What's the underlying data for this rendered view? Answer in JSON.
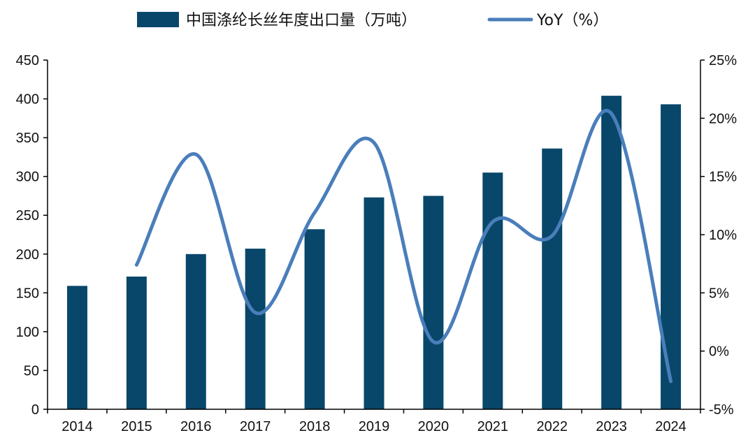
{
  "chart_data": {
    "type": "bar",
    "categories": [
      "2014",
      "2015",
      "2016",
      "2017",
      "2018",
      "2019",
      "2020",
      "2021",
      "2022",
      "2023",
      "2024"
    ],
    "series": [
      {
        "name": "中国涤纶长丝年度出口量（万吨）",
        "type": "bar",
        "axis": "left",
        "color": "#08476a",
        "values": [
          159,
          171,
          200,
          207,
          232,
          273,
          275,
          305,
          336,
          404,
          393
        ]
      },
      {
        "name": "YoY（%）",
        "type": "line",
        "axis": "right",
        "color": "#4a7ebb",
        "values": [
          null,
          7.4,
          16.9,
          3.3,
          11.9,
          17.9,
          0.8,
          11.1,
          9.9,
          20.4,
          -2.6
        ]
      }
    ],
    "y_left": {
      "min": 0,
      "max": 450,
      "step": 50,
      "ticks": [
        "0",
        "50",
        "100",
        "150",
        "200",
        "250",
        "300",
        "350",
        "400",
        "450"
      ]
    },
    "y_right": {
      "min": -5,
      "max": 25,
      "step": 5,
      "ticks": [
        "-5%",
        "0%",
        "5%",
        "10%",
        "15%",
        "20%",
        "25%"
      ]
    },
    "grid": false,
    "legend_position": "top"
  }
}
